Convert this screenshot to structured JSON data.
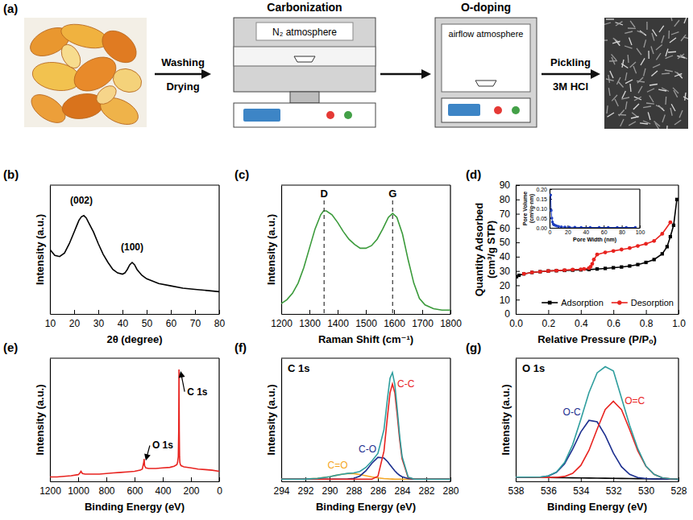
{
  "diagram": {
    "panel": "(a)",
    "step1": {
      "above": "Washing",
      "below": "Drying"
    },
    "carbonization": {
      "title": "Carbonization",
      "atmosphere": "N₂ atmosphere"
    },
    "o_doping": {
      "title": "O-doping",
      "atmosphere": "airflow atmosphere"
    },
    "step3": {
      "above": "Pickling",
      "below": "3M HCl"
    }
  },
  "chart_data": [
    {
      "type": "line",
      "panel": "(b)",
      "x_label": "2θ (degree)",
      "y_label": "Intensity (a.u.)",
      "xlim": [
        10,
        80
      ],
      "xticks": [
        10,
        20,
        30,
        40,
        50,
        60,
        70,
        80
      ],
      "ylim": [
        0,
        110
      ],
      "tick_labels": "x",
      "x": [
        10,
        12,
        14,
        16,
        18,
        20,
        21,
        22,
        23,
        24,
        25,
        26,
        28,
        30,
        32,
        34,
        36,
        38,
        40,
        41,
        42,
        43,
        44,
        45,
        46,
        48,
        50,
        55,
        60,
        65,
        70,
        75,
        80
      ],
      "series": [
        {
          "color": "#000000",
          "values": [
            55,
            50,
            49,
            52,
            60,
            70,
            75,
            80,
            83,
            84,
            82,
            78,
            70,
            60,
            51,
            44,
            38,
            35,
            34,
            35,
            38,
            42,
            44,
            42,
            38,
            33,
            30,
            26,
            24,
            22,
            21,
            20,
            19
          ]
        }
      ],
      "annotations": [
        {
          "text": "(002)",
          "x": 23,
          "y": 94
        },
        {
          "text": "(100)",
          "x": 44,
          "y": 54
        }
      ]
    },
    {
      "type": "line",
      "panel": "(c)",
      "x_label": "Raman Shift (cm⁻¹)",
      "y_label": "Intensity (a.u.)",
      "xlim": [
        1200,
        1800
      ],
      "xticks": [
        1200,
        1300,
        1400,
        1500,
        1600,
        1700,
        1800
      ],
      "ylim": [
        0,
        100
      ],
      "tick_labels": "x",
      "x": [
        1200,
        1220,
        1240,
        1260,
        1280,
        1300,
        1320,
        1340,
        1350,
        1360,
        1380,
        1400,
        1420,
        1440,
        1460,
        1480,
        1500,
        1520,
        1540,
        1560,
        1580,
        1595,
        1610,
        1630,
        1650,
        1670,
        1690,
        1710,
        1740,
        1770,
        1800
      ],
      "series": [
        {
          "color": "#3a9a3a",
          "values": [
            8,
            11,
            16,
            24,
            36,
            51,
            66,
            77,
            80,
            80,
            77,
            71,
            64,
            58,
            54,
            51,
            51,
            53,
            58,
            66,
            75,
            78,
            75,
            62,
            42,
            24,
            12,
            7,
            4,
            3,
            3
          ]
        }
      ],
      "annotations": [
        {
          "text": "D",
          "x": 1352
        },
        {
          "text": "G",
          "x": 1595
        }
      ]
    },
    {
      "type": "line",
      "panel": "(d)",
      "x_label": "Relative Pressure (P/Pₒ)",
      "y_label": "Quantity Adsorbed (cm³/g STP)",
      "xlim": [
        0,
        1
      ],
      "xticks": [
        {
          "value": 0,
          "label": "0.0"
        },
        0.2,
        0.4,
        0.6,
        0.8,
        {
          "value": 1,
          "label": "1.0"
        }
      ],
      "ylim": [
        0,
        90
      ],
      "yticks": [
        0,
        10,
        20,
        30,
        40,
        50,
        60,
        70,
        80,
        90
      ],
      "legend": "lower right",
      "series": [
        {
          "name": "Adsorption",
          "color": "#000000",
          "marker": "square",
          "x": [
            0.005,
            0.02,
            0.05,
            0.1,
            0.15,
            0.2,
            0.25,
            0.3,
            0.35,
            0.4,
            0.45,
            0.5,
            0.55,
            0.6,
            0.65,
            0.7,
            0.75,
            0.8,
            0.85,
            0.9,
            0.93,
            0.95,
            0.97,
            0.99
          ],
          "values": [
            26,
            27,
            28,
            29,
            29.5,
            30,
            30.2,
            30.4,
            30.6,
            30.8,
            31,
            31.4,
            31.8,
            32.3,
            32.8,
            33.5,
            34.5,
            36,
            38,
            42,
            47,
            54,
            62,
            80
          ]
        },
        {
          "name": "Desorption",
          "color": "#e8231f",
          "marker": "circle",
          "x": [
            0.95,
            0.9,
            0.85,
            0.8,
            0.75,
            0.7,
            0.65,
            0.6,
            0.55,
            0.5,
            0.48,
            0.47,
            0.46,
            0.45,
            0.42,
            0.4,
            0.35,
            0.3,
            0.25,
            0.2,
            0.15,
            0.1,
            0.05
          ],
          "values": [
            64,
            56,
            51,
            49,
            47.5,
            46,
            45,
            44,
            43,
            41.5,
            38,
            35,
            33,
            32,
            31.4,
            31.2,
            31,
            30.6,
            30.3,
            30,
            29.5,
            29,
            28
          ]
        }
      ]
    },
    {
      "type": "line",
      "x_label": "Pore Width (nm)",
      "y_label": "Pore Volume (cm³/g·nm)",
      "xlim": [
        0,
        100
      ],
      "xticks": [
        0,
        20,
        40,
        60,
        80,
        100
      ],
      "ylim": [
        0,
        0.2
      ],
      "yticks": [
        {
          "value": 0,
          "label": "0.00"
        },
        0.05,
        {
          "value": 0.1,
          "label": "0.10"
        },
        0.15,
        {
          "value": 0.2,
          "label": "0.20"
        }
      ],
      "x": [
        1.2,
        1.8,
        2.5,
        3.2,
        4,
        5,
        6.5,
        8,
        10,
        13,
        17,
        22,
        28,
        35,
        45,
        55,
        65,
        75,
        85,
        95
      ],
      "series": [
        {
          "color": "#1f3fbf",
          "marker": "circle",
          "values": [
            0.17,
            0.09,
            0.05,
            0.03,
            0.02,
            0.015,
            0.012,
            0.009,
            0.007,
            0.005,
            0.004,
            0.003,
            0.003,
            0.002,
            0.002,
            0.002,
            0.002,
            0.002,
            0.002,
            0.002
          ]
        }
      ]
    },
    {
      "type": "line",
      "panel": "(e)",
      "x_label": "Binding Energy (eV)",
      "y_label": "Intensity (a.u.)",
      "xlim": [
        1200,
        0
      ],
      "xticks": [
        1200,
        1000,
        800,
        600,
        400,
        200,
        0
      ],
      "ylim": [
        0,
        110
      ],
      "tick_labels": "x",
      "x": [
        1200,
        1150,
        1100,
        1050,
        1000,
        990,
        980,
        970,
        950,
        900,
        850,
        800,
        750,
        700,
        650,
        600,
        560,
        545,
        535,
        532,
        529,
        520,
        500,
        450,
        400,
        350,
        320,
        300,
        295,
        290,
        287,
        285,
        283,
        281,
        279,
        275,
        270,
        260,
        250,
        200,
        150,
        100,
        50,
        0
      ],
      "series": [
        {
          "color": "#e8231f",
          "values": [
            4,
            4,
            4.5,
            5,
            6,
            7,
            9,
            7,
            6.5,
            6.5,
            6.5,
            7,
            7.5,
            8,
            8.5,
            9,
            10,
            11,
            17,
            20,
            14,
            12,
            11.5,
            11.5,
            12,
            12.5,
            13.5,
            15,
            17,
            22,
            45,
            100,
            45,
            22,
            17,
            15,
            14,
            13.5,
            13,
            12,
            11,
            10.5,
            10,
            9
          ]
        }
      ],
      "annotations": [
        {
          "text": "C 1s",
          "x": 285,
          "y": 80
        },
        {
          "text": "O 1s",
          "x": 532,
          "y": 32
        }
      ]
    },
    {
      "type": "line",
      "panel": "(f)",
      "title": "C 1s",
      "x_label": "Binding Energy (eV)",
      "y_label": "Intensity (a.u.)",
      "xlim": [
        294,
        280
      ],
      "xticks": [
        294,
        292,
        290,
        288,
        286,
        284,
        282,
        280
      ],
      "ylim": [
        0,
        110
      ],
      "tick_labels": "x",
      "x": [
        294,
        293,
        292,
        291,
        290,
        289.5,
        289,
        288.5,
        288,
        287.5,
        287,
        286.5,
        286,
        285.5,
        285.2,
        285,
        284.8,
        284.6,
        284.4,
        284.2,
        284,
        283.5,
        283,
        282,
        281,
        280
      ],
      "series": [
        {
          "name": "C=O",
          "color": "#f5a623",
          "values": [
            2,
            2,
            2.1,
            2.6,
            4.1,
            5.3,
            6.3,
            7,
            6.9,
            6.1,
            5,
            3.9,
            3,
            2.5,
            2.3,
            2.2,
            2.1,
            2,
            2,
            2,
            2,
            2,
            2,
            2,
            2,
            2
          ]
        },
        {
          "name": "C-O",
          "color": "#1c2f8f",
          "values": [
            2,
            2,
            2,
            2,
            2,
            2,
            2,
            2.1,
            2.7,
            4.7,
            9.4,
            16.2,
            21.5,
            20.8,
            17.6,
            14.8,
            12,
            9.4,
            7.1,
            5.4,
            4.1,
            2.5,
            2,
            2,
            2,
            2
          ]
        },
        {
          "name": "C-C",
          "color": "#e8231f",
          "values": [
            2,
            2,
            2,
            2,
            2,
            2,
            2,
            2,
            2,
            2,
            2,
            2,
            4.5,
            27,
            59,
            79,
            87,
            79,
            59,
            37,
            20,
            3.3,
            2,
            2,
            2,
            2
          ]
        },
        {
          "color": "#2f9e9e",
          "values": [
            2,
            2,
            2.1,
            2.6,
            4.1,
            5.3,
            6.3,
            7.1,
            7.6,
            8.8,
            12.4,
            18.1,
            25,
            46.3,
            74.9,
            92,
            97.1,
            86.4,
            64.1,
            40.4,
            22.1,
            3.8,
            2,
            2,
            2,
            2
          ]
        }
      ]
    },
    {
      "type": "line",
      "panel": "(g)",
      "title": "O 1s",
      "x_label": "Binding Energy (eV)",
      "y_label": "Intensity (a.u.)",
      "xlim": [
        538,
        528
      ],
      "xticks": [
        538,
        536,
        534,
        532,
        530,
        528
      ],
      "ylim": [
        0,
        115
      ],
      "tick_labels": "x",
      "x": [
        538,
        537.5,
        537,
        536.5,
        536,
        535.5,
        535,
        534.5,
        534,
        533.5,
        533,
        532.5,
        532,
        531.5,
        531,
        530.5,
        530,
        529.5,
        529,
        528.5,
        528
      ],
      "series": [
        {
          "color": "#000000",
          "values": [
            4,
            3.9,
            3.8,
            3.7,
            3.6,
            3.5,
            3.4,
            3.3,
            3.2,
            3.1,
            3.0,
            2.9,
            2.8,
            2.7,
            2.6,
            2.5,
            2.4,
            2.3,
            2.2,
            2.1,
            2.0
          ]
        },
        {
          "name": "O-C",
          "color": "#1c2f8f",
          "values": [
            4,
            3.9,
            3.9,
            4.0,
            5.0,
            8.4,
            16.4,
            30.1,
            46.2,
            57.0,
            55.6,
            42.9,
            26.4,
            13.6,
            6.5,
            3.6,
            2.6,
            2.3,
            2.2,
            2.1,
            2.0
          ]
        },
        {
          "name": "O=C",
          "color": "#e8231f",
          "values": [
            4,
            3.9,
            3.8,
            3.7,
            3.7,
            3.8,
            4.6,
            7.5,
            14.9,
            29.0,
            48.7,
            67.1,
            74.8,
            66.9,
            48.3,
            28.4,
            14.1,
            6.5,
            3.4,
            2.4,
            2.1
          ]
        },
        {
          "color": "#2f9e9e",
          "values": [
            4,
            3.9,
            3.9,
            4.0,
            5.1,
            8.7,
            17.6,
            34.3,
            57.9,
            82.9,
            101.3,
            107.1,
            103.2,
            77.8,
            52.2,
            30.5,
            14.3,
            6.5,
            3.4,
            2.4,
            2.1
          ]
        }
      ]
    }
  ]
}
